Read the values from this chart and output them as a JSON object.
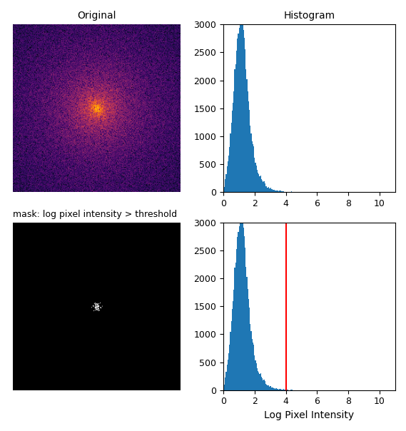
{
  "title_top_left": "Original",
  "title_top_right": "Histogram",
  "title_bottom_left": "mask: log pixel intensity > threshold",
  "xlabel_bottom_right": "Log Pixel Intensity",
  "hist_color": "#1f77b4",
  "threshold": 4.0,
  "threshold_line_color": "red",
  "ylim": [
    0,
    3000
  ],
  "xlim": [
    0,
    11
  ],
  "image_size": 256,
  "fft_seed": 42,
  "hist_bins": 200,
  "colormap": "inferno"
}
